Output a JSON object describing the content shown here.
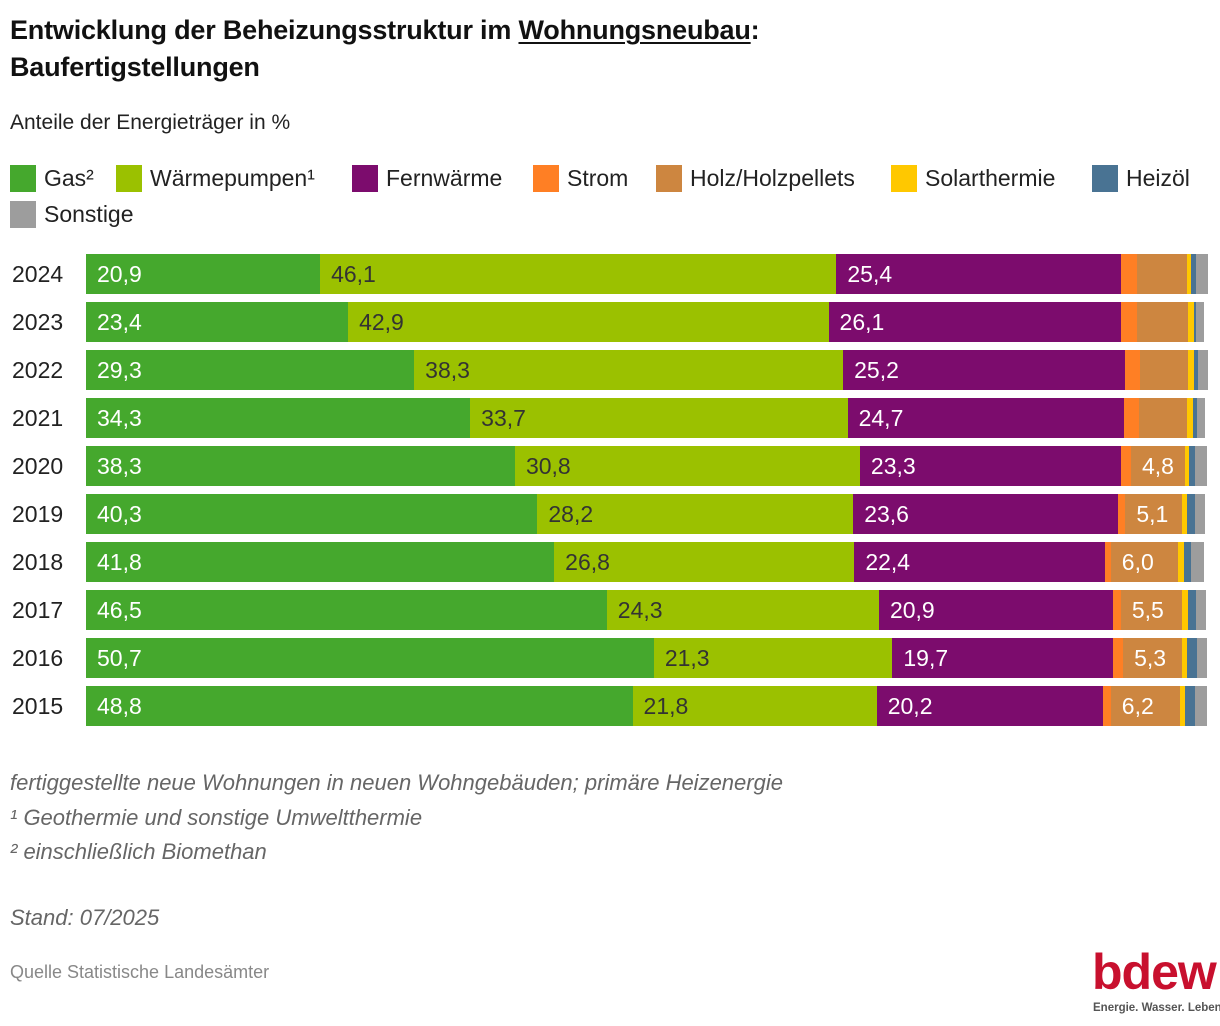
{
  "header": {
    "title_part1": "Entwicklung der Beheizungsstruktur im ",
    "title_underlined": "Wohnungsneubau",
    "title_part2": ":",
    "title_line2": "Baufertigstellungen",
    "subtitle": "Anteile der Energieträger in %"
  },
  "chart_data": {
    "type": "bar",
    "orientation": "horizontal",
    "stacked": true,
    "title": "Entwicklung der Beheizungsstruktur im Wohnungsneubau: Baufertigstellungen",
    "subtitle": "Anteile der Energieträger in %",
    "xlabel": "",
    "ylabel": "",
    "xlim": [
      0,
      100
    ],
    "grid": false,
    "legend_position": "top",
    "categories": [
      "2024",
      "2023",
      "2022",
      "2021",
      "2020",
      "2019",
      "2018",
      "2017",
      "2016",
      "2015"
    ],
    "series": [
      {
        "key": "gas",
        "name": "Gas²",
        "color": "#45A82D",
        "values": [
          20.9,
          23.4,
          29.3,
          34.3,
          38.3,
          40.3,
          41.8,
          46.5,
          50.7,
          48.8
        ],
        "labels": [
          "20,9",
          "23,4",
          "29,3",
          "34,3",
          "38,3",
          "40,3",
          "41,8",
          "46,5",
          "50,7",
          "48,8"
        ]
      },
      {
        "key": "waermepumpen",
        "name": "Wärmepumpen¹",
        "color": "#9BC100",
        "values": [
          46.1,
          42.9,
          38.3,
          33.7,
          30.8,
          28.2,
          26.8,
          24.3,
          21.3,
          21.8
        ],
        "labels": [
          "46,1",
          "42,9",
          "38,3",
          "33,7",
          "30,8",
          "28,2",
          "26,8",
          "24,3",
          "21,3",
          "21,8"
        ]
      },
      {
        "key": "fernwaerme",
        "name": "Fernwärme",
        "color": "#7C0C6D",
        "values": [
          25.4,
          26.1,
          25.2,
          24.7,
          23.3,
          23.6,
          22.4,
          20.9,
          19.7,
          20.2
        ],
        "labels": [
          "25,4",
          "26,1",
          "25,2",
          "24,7",
          "23,3",
          "23,6",
          "22,4",
          "20,9",
          "19,7",
          "20,2"
        ]
      },
      {
        "key": "strom",
        "name": "Strom",
        "color": "#FF7F24",
        "values": [
          1.4,
          1.4,
          1.3,
          1.3,
          0.9,
          0.7,
          0.5,
          0.7,
          0.9,
          0.7
        ],
        "labels": [
          null,
          null,
          null,
          null,
          null,
          null,
          null,
          null,
          null,
          null
        ]
      },
      {
        "key": "holz",
        "name": "Holz/Holzpellets",
        "color": "#CD8640",
        "values": [
          4.5,
          4.6,
          4.3,
          4.3,
          4.8,
          5.1,
          6.0,
          5.5,
          5.3,
          6.2
        ],
        "labels": [
          null,
          null,
          null,
          null,
          "4,8",
          "5,1",
          "6,0",
          "5,5",
          "5,3",
          "6,2"
        ]
      },
      {
        "key": "solarthermie",
        "name": "Solarthermie",
        "color": "#FFC800",
        "values": [
          0.4,
          0.5,
          0.5,
          0.5,
          0.4,
          0.4,
          0.5,
          0.5,
          0.4,
          0.4
        ],
        "labels": [
          null,
          null,
          null,
          null,
          null,
          null,
          null,
          null,
          null,
          null
        ]
      },
      {
        "key": "heizoel",
        "name": "Heizöl",
        "color": "#497393",
        "values": [
          0.4,
          0.2,
          0.4,
          0.4,
          0.5,
          0.7,
          0.7,
          0.7,
          0.9,
          0.9
        ],
        "labels": [
          null,
          null,
          null,
          null,
          null,
          null,
          null,
          null,
          null,
          null
        ]
      },
      {
        "key": "sonstige",
        "name": "Sonstige",
        "color": "#9D9D9D",
        "values": [
          1.1,
          0.7,
          0.9,
          0.7,
          1.1,
          0.9,
          1.1,
          0.9,
          0.9,
          1.1
        ],
        "labels": [
          null,
          null,
          null,
          null,
          null,
          null,
          null,
          null,
          null,
          null
        ]
      }
    ]
  },
  "footer": {
    "notes": [
      "fertiggestellte neue Wohnungen in neuen Wohngebäuden; primäre Heizenergie",
      "¹ Geothermie und sonstige Umweltthermie",
      "² einschließlich Biomethan"
    ],
    "stand": "Stand: 07/2025",
    "source": "Quelle Statistische Landesämter"
  },
  "logo": {
    "wordmark": "bdew",
    "tagline": "Energie. Wasser. Leben.",
    "color": "#C8102E"
  }
}
